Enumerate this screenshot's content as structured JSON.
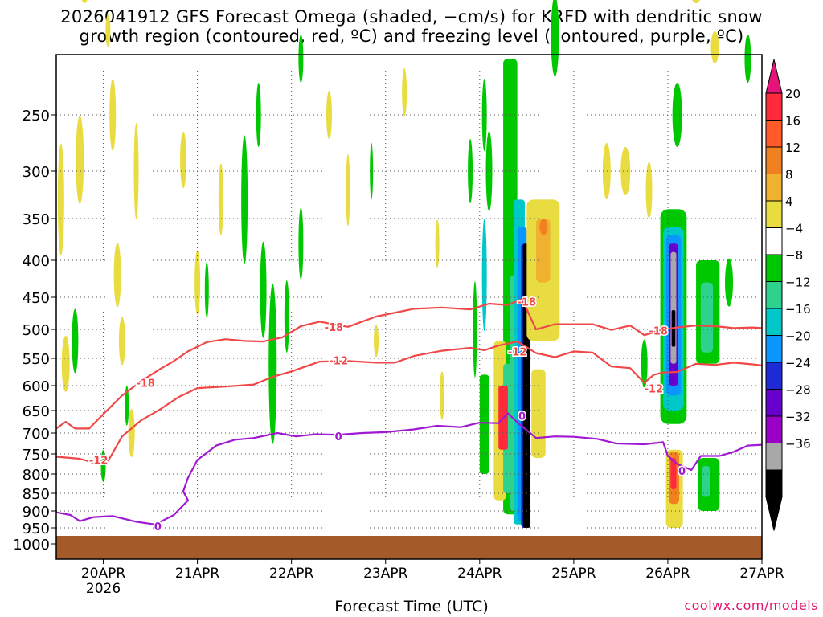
{
  "title": {
    "line1": "2026041912 GFS Forecast Omega (shaded, −cm/s) for KRFD with dendritic snow",
    "line2": "growth region (contoured, red, ºC) and freezing level (contoured, purple, ºC)"
  },
  "credit": "coolwx.com/models",
  "chart_data": {
    "type": "heatmap",
    "xlabel": "Forecast Time (UTC)",
    "ylabel": "",
    "x_ticks": [
      "20APR",
      "21APR",
      "22APR",
      "23APR",
      "24APR",
      "25APR",
      "26APR",
      "27APR"
    ],
    "x_year_label": "2026",
    "y_ticks": [
      250,
      300,
      350,
      400,
      450,
      500,
      550,
      600,
      650,
      700,
      750,
      800,
      850,
      900,
      950,
      1000
    ],
    "y_range_hpa": [
      200,
      1025
    ],
    "x_range_days": [
      19.5,
      27
    ],
    "grid": true,
    "colorbar": {
      "labels": [
        "20",
        "16",
        "12",
        "8",
        "4",
        "−4",
        "−8",
        "−12",
        "−16",
        "−20",
        "−24",
        "−28",
        "−32",
        "−36"
      ],
      "colors": [
        "#ff2a3c",
        "#ff5a28",
        "#f08020",
        "#f0b030",
        "#e8dc40",
        "#ffffff",
        "#00c800",
        "#2fd28c",
        "#00c8c8",
        "#0a96ff",
        "#1e2ad6",
        "#6600cc",
        "#9a00c8",
        "#a8a8a8",
        "#000000"
      ],
      "top_arrow_color": "#e6137a",
      "bottom_arrow_color": "#000000"
    },
    "contours": [
      {
        "label": "-18",
        "color": "#f04848",
        "points": [
          [
            19.5,
            690
          ],
          [
            19.6,
            675
          ],
          [
            19.7,
            690
          ],
          [
            19.85,
            690
          ],
          [
            20.0,
            658
          ],
          [
            20.2,
            620
          ],
          [
            20.4,
            592
          ],
          [
            20.6,
            570
          ],
          [
            20.75,
            555
          ],
          [
            20.9,
            538
          ],
          [
            21.1,
            522
          ],
          [
            21.3,
            517
          ],
          [
            21.5,
            520
          ],
          [
            21.7,
            521
          ],
          [
            21.9,
            514
          ],
          [
            22.1,
            495
          ],
          [
            22.3,
            488
          ],
          [
            22.6,
            496
          ],
          [
            22.9,
            480
          ],
          [
            23.3,
            468
          ],
          [
            23.6,
            466
          ],
          [
            23.9,
            469
          ],
          [
            24.1,
            460
          ],
          [
            24.3,
            462
          ],
          [
            24.45,
            453
          ],
          [
            24.6,
            500
          ],
          [
            24.8,
            492
          ],
          [
            25.0,
            492
          ],
          [
            25.2,
            492
          ],
          [
            25.4,
            501
          ],
          [
            25.6,
            494
          ],
          [
            25.75,
            510
          ],
          [
            25.95,
            500
          ],
          [
            26.1,
            497
          ],
          [
            26.3,
            494
          ],
          [
            26.5,
            495
          ],
          [
            26.7,
            498
          ],
          [
            26.9,
            497
          ],
          [
            27.0,
            498
          ]
        ],
        "labels_at": [
          [
            20.45,
            595
          ],
          [
            22.45,
            496
          ],
          [
            24.5,
            457
          ],
          [
            25.9,
            502
          ]
        ]
      },
      {
        "label": "-12",
        "color": "#f04848",
        "points": [
          [
            19.5,
            757
          ],
          [
            19.75,
            762
          ],
          [
            19.9,
            772
          ],
          [
            20.05,
            768
          ],
          [
            20.2,
            708
          ],
          [
            20.4,
            672
          ],
          [
            20.6,
            648
          ],
          [
            20.8,
            623
          ],
          [
            21.0,
            605
          ],
          [
            21.3,
            602
          ],
          [
            21.6,
            598
          ],
          [
            21.8,
            584
          ],
          [
            22.0,
            574
          ],
          [
            22.3,
            556
          ],
          [
            22.6,
            555
          ],
          [
            22.9,
            558
          ],
          [
            23.1,
            558
          ],
          [
            23.3,
            546
          ],
          [
            23.6,
            537
          ],
          [
            23.9,
            532
          ],
          [
            24.05,
            536
          ],
          [
            24.2,
            528
          ],
          [
            24.4,
            521
          ],
          [
            24.6,
            541
          ],
          [
            24.8,
            548
          ],
          [
            25.0,
            538
          ],
          [
            25.2,
            540
          ],
          [
            25.4,
            565
          ],
          [
            25.6,
            568
          ],
          [
            25.75,
            595
          ],
          [
            25.85,
            580
          ],
          [
            25.95,
            576
          ],
          [
            26.1,
            575
          ],
          [
            26.3,
            560
          ],
          [
            26.5,
            562
          ],
          [
            26.7,
            558
          ],
          [
            26.9,
            561
          ],
          [
            27.0,
            563
          ]
        ],
        "labels_at": [
          [
            19.95,
            765
          ],
          [
            22.5,
            554
          ],
          [
            24.4,
            538
          ],
          [
            25.85,
            606
          ]
        ]
      },
      {
        "label": "0",
        "color": "#a019d2",
        "points": [
          [
            19.5,
            904
          ],
          [
            19.65,
            912
          ],
          [
            19.75,
            930
          ],
          [
            19.9,
            918
          ],
          [
            20.1,
            915
          ],
          [
            20.35,
            932
          ],
          [
            20.55,
            940
          ],
          [
            20.75,
            912
          ],
          [
            20.9,
            870
          ],
          [
            20.85,
            845
          ],
          [
            20.9,
            810
          ],
          [
            21.0,
            765
          ],
          [
            21.2,
            730
          ],
          [
            21.4,
            716
          ],
          [
            21.6,
            712
          ],
          [
            21.85,
            700
          ],
          [
            22.05,
            708
          ],
          [
            22.25,
            703
          ],
          [
            22.5,
            704
          ],
          [
            22.75,
            700
          ],
          [
            23.0,
            698
          ],
          [
            23.3,
            692
          ],
          [
            23.55,
            684
          ],
          [
            23.8,
            687
          ],
          [
            24.0,
            677
          ],
          [
            24.2,
            678
          ],
          [
            24.3,
            656
          ],
          [
            24.4,
            676
          ],
          [
            24.6,
            712
          ],
          [
            24.8,
            708
          ],
          [
            25.0,
            709
          ],
          [
            25.25,
            714
          ],
          [
            25.45,
            725
          ],
          [
            25.75,
            727
          ],
          [
            25.95,
            722
          ],
          [
            26.0,
            755
          ],
          [
            26.1,
            775
          ],
          [
            26.25,
            790
          ],
          [
            26.35,
            755
          ],
          [
            26.55,
            755
          ],
          [
            26.7,
            745
          ],
          [
            26.85,
            730
          ],
          [
            27.0,
            728
          ]
        ],
        "labels_at": [
          [
            20.58,
            945
          ],
          [
            22.5,
            708
          ],
          [
            24.45,
            662
          ],
          [
            26.15,
            792
          ]
        ]
      }
    ],
    "terrain_fill_hpa": 975,
    "terrain_color": "#a55a2a"
  }
}
